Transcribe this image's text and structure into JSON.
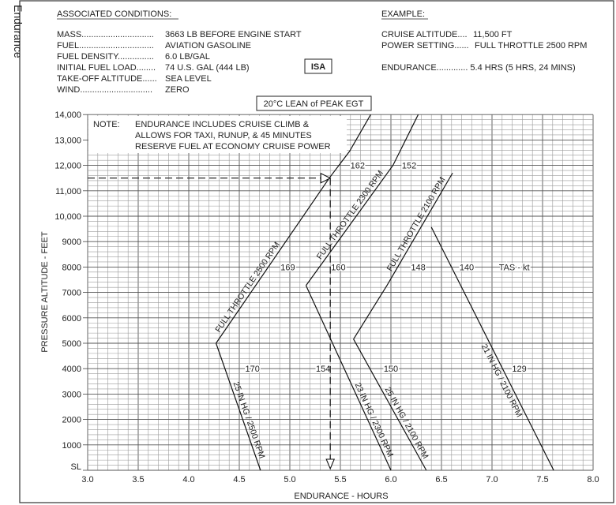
{
  "side_title": "Endurance",
  "conditions": {
    "heading": "ASSOCIATED CONDITIONS:",
    "rows": [
      {
        "label": "MASS..............................",
        "value": "3663 LB BEFORE ENGINE START"
      },
      {
        "label": "FUEL...............................",
        "value": "AVIATION GASOLINE"
      },
      {
        "label": "FUEL DENSITY...............",
        "value": "6.0 LB/GAL"
      },
      {
        "label": "INITIAL FUEL LOAD........",
        "value": "74 U.S. GAL (444 LB)"
      },
      {
        "label": "TAKE-OFF ALTITUDE......",
        "value": "SEA LEVEL"
      },
      {
        "label": "WIND..............................",
        "value": "ZERO"
      }
    ],
    "isa_badge": "ISA",
    "mixture_badge": "20°C  LEAN of PEAK EGT"
  },
  "example": {
    "heading": "EXAMPLE:",
    "rows": [
      {
        "label": "CRUISE ALTITUDE....",
        "value": "11,500 FT"
      },
      {
        "label": "POWER SETTING......",
        "value": "FULL THROTTLE  2500 RPM"
      },
      {
        "label": "ENDURANCE.............",
        "value": "5.4 HRS  (5 HRS,  24 MINS)"
      }
    ]
  },
  "note": {
    "label": "NOTE:",
    "lines": [
      "ENDURANCE INCLUDES CRUISE CLIMB &",
      "ALLOWS FOR TAXI, RUNUP, & 45 MINUTES",
      "RESERVE FUEL AT ECONOMY CRUISE POWER"
    ]
  },
  "chart_data": {
    "type": "line",
    "xlabel": "ENDURANCE - HOURS",
    "ylabel": "PRESSURE ALTITUDE - FEET",
    "xlim": [
      3.0,
      8.0
    ],
    "ylim": [
      0,
      14000
    ],
    "grid": true,
    "x_ticks": [
      "3.0",
      "3.5",
      "4.0",
      "4.5",
      "5.0",
      "5.5",
      "6.0",
      "6.5",
      "7.0",
      "7.5",
      "8.0"
    ],
    "y_ticks": [
      "SL",
      "1000",
      "2000",
      "3000",
      "4000",
      "5000",
      "6000",
      "7000",
      "8000",
      "9000",
      "10,000",
      "11,000",
      "12,000",
      "13,000",
      "14,000"
    ],
    "series": [
      {
        "name": "25 IN HG / 2500 RPM",
        "points": [
          [
            4.71,
            0
          ],
          [
            4.27,
            5000
          ]
        ]
      },
      {
        "name": "FULL THROTTLE  2500 RPM",
        "points": [
          [
            4.27,
            5000
          ],
          [
            5.39,
            11500
          ],
          [
            5.59,
            12550
          ],
          [
            5.8,
            14000
          ]
        ]
      },
      {
        "name": "23 IN HG / 2300 RPM",
        "points": [
          [
            6.0,
            0
          ],
          [
            5.16,
            7270
          ]
        ]
      },
      {
        "name": "FULL THROTTLE  2300 RPM",
        "points": [
          [
            5.16,
            7270
          ],
          [
            6.02,
            12000
          ],
          [
            6.27,
            14000
          ]
        ]
      },
      {
        "name": "25 IN HG / 2100 RPM",
        "points": [
          [
            6.35,
            0
          ],
          [
            5.63,
            5160
          ]
        ]
      },
      {
        "name": "FULL THROTTLE  2100 RPM",
        "points": [
          [
            5.63,
            5160
          ],
          [
            5.96,
            7270
          ],
          [
            6.61,
            11700
          ]
        ]
      },
      {
        "name": "21 IN HG / 2100 RPM",
        "points": [
          [
            7.61,
            0
          ],
          [
            6.4,
            9570
          ]
        ]
      }
    ],
    "tas_labels": [
      {
        "text": "162",
        "x": 5.67,
        "y": 12000
      },
      {
        "text": "152",
        "x": 6.18,
        "y": 12000
      },
      {
        "text": "169",
        "x": 4.98,
        "y": 8000
      },
      {
        "text": "160",
        "x": 5.48,
        "y": 8000
      },
      {
        "text": "148",
        "x": 6.27,
        "y": 8000
      },
      {
        "text": "140",
        "x": 6.75,
        "y": 8000
      },
      {
        "text": "TAS - kt",
        "x": 7.22,
        "y": 8000
      },
      {
        "text": "170",
        "x": 4.63,
        "y": 4000
      },
      {
        "text": "154",
        "x": 5.33,
        "y": 4000
      },
      {
        "text": "150",
        "x": 6.0,
        "y": 4000
      },
      {
        "text": "129",
        "x": 7.27,
        "y": 4000
      }
    ],
    "example_path": [
      [
        3.0,
        11500
      ],
      [
        5.4,
        11500
      ],
      [
        5.4,
        0
      ]
    ]
  }
}
